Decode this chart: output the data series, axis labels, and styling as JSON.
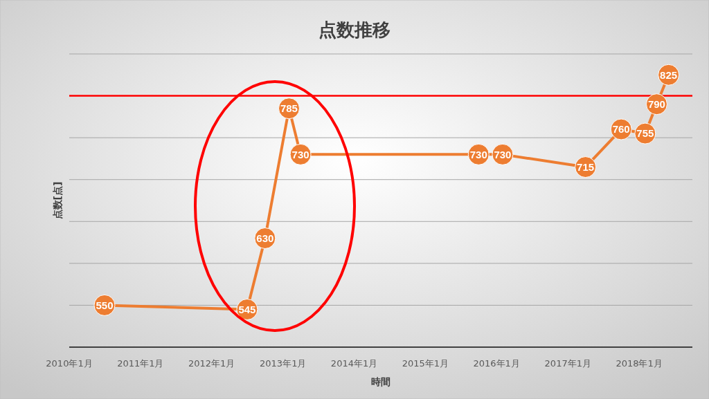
{
  "chart_data": {
    "type": "line",
    "title": "点数推移",
    "xlabel": "時間",
    "ylabel": "点数[点]",
    "x": [
      "2010-07",
      "2012-07",
      "2012-10",
      "2013-02",
      "2013-04",
      "2015-10",
      "2016-02",
      "2017-04",
      "2017-10",
      "2018-02",
      "2018-04",
      "2018-06"
    ],
    "series": [
      {
        "color": "#ed7d31",
        "values": [
          550,
          545,
          630,
          785,
          730,
          730,
          730,
          715,
          760,
          755,
          790,
          825
        ]
      }
    ],
    "xlim": [
      "2010-01",
      "2018-10"
    ],
    "xticks": [
      {
        "value": "2010-01",
        "label": "2010年1月"
      },
      {
        "value": "2011-01",
        "label": "2011年1月"
      },
      {
        "value": "2012-01",
        "label": "2012年1月"
      },
      {
        "value": "2013-01",
        "label": "2013年1月"
      },
      {
        "value": "2014-01",
        "label": "2014年1月"
      },
      {
        "value": "2015-01",
        "label": "2015年1月"
      },
      {
        "value": "2016-01",
        "label": "2016年1月"
      },
      {
        "value": "2017-01",
        "label": "2017年1月"
      },
      {
        "value": "2018-01",
        "label": "2018年1月"
      }
    ],
    "ylim": [
      500,
      850
    ],
    "yticks": [
      {
        "value": 500,
        "label": null
      },
      {
        "value": 550,
        "label": null
      },
      {
        "value": 600,
        "label": null
      },
      {
        "value": 650,
        "label": null
      },
      {
        "value": 700,
        "label": null
      },
      {
        "value": 750,
        "label": null
      },
      {
        "value": 800,
        "label": null
      },
      {
        "value": 850,
        "label": null
      }
    ],
    "tick_labels": "x",
    "grid": "y",
    "marker": "circle",
    "line_style": "solid",
    "data_labels": true,
    "ref_lines": [
      {
        "axis": "y",
        "value": 800,
        "color": "#ff0000"
      }
    ]
  }
}
